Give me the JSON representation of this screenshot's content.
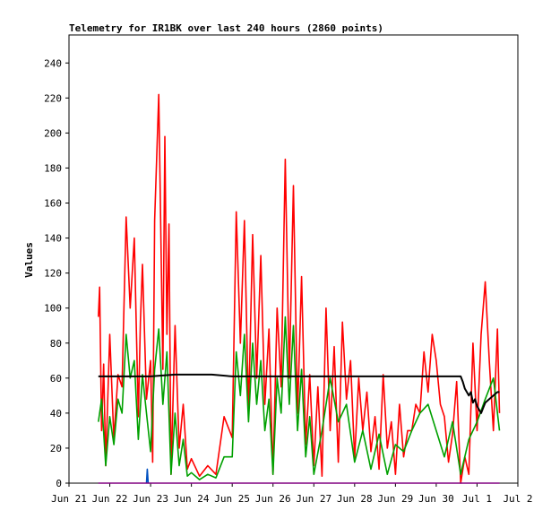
{
  "chart_data": {
    "type": "line",
    "title": "Telemetry for IR1BK over last 240 hours (2860 points)",
    "xlabel": "",
    "ylabel": "Values",
    "x_ticks": [
      "Jun 21",
      "Jun 22",
      "Jun 23",
      "Jun 24",
      "Jun 25",
      "Jun 26",
      "Jun 27",
      "Jun 28",
      "Jun 29",
      "Jun 30",
      "Jul 1",
      "Jul 2"
    ],
    "y_ticks": [
      0,
      20,
      40,
      60,
      80,
      100,
      120,
      140,
      160,
      180,
      200,
      220,
      240
    ],
    "xlim": [
      0,
      11
    ],
    "ylim": [
      0,
      256
    ],
    "grid": false,
    "legend": "none",
    "series": [
      {
        "color": "#ff0000",
        "x": [
          0.72,
          0.75,
          0.8,
          0.85,
          0.9,
          1.0,
          1.1,
          1.2,
          1.3,
          1.4,
          1.5,
          1.6,
          1.7,
          1.75,
          1.8,
          1.9,
          2.0,
          2.05,
          2.1,
          2.2,
          2.3,
          2.35,
          2.4,
          2.45,
          2.5,
          2.6,
          2.7,
          2.8,
          2.9,
          3.0,
          3.2,
          3.4,
          3.6,
          3.8,
          4.0,
          4.1,
          4.2,
          4.3,
          4.4,
          4.5,
          4.6,
          4.7,
          4.8,
          4.9,
          5.0,
          5.1,
          5.2,
          5.3,
          5.4,
          5.5,
          5.6,
          5.7,
          5.8,
          5.9,
          6.0,
          6.1,
          6.2,
          6.3,
          6.4,
          6.5,
          6.6,
          6.7,
          6.8,
          6.9,
          7.0,
          7.1,
          7.2,
          7.3,
          7.4,
          7.5,
          7.6,
          7.7,
          7.8,
          7.9,
          8.0,
          8.1,
          8.2,
          8.3,
          8.4,
          8.5,
          8.6,
          8.7,
          8.8,
          8.9,
          9.0,
          9.1,
          9.2,
          9.3,
          9.4,
          9.5,
          9.6,
          9.7,
          9.8,
          9.9,
          10.0,
          10.1,
          10.2,
          10.3,
          10.4,
          10.5,
          10.55
        ],
        "values": [
          95,
          112,
          30,
          68,
          10,
          85,
          25,
          62,
          55,
          152,
          100,
          140,
          38,
          92,
          125,
          48,
          70,
          12,
          150,
          222,
          65,
          198,
          85,
          148,
          5,
          90,
          20,
          45,
          8,
          14,
          4,
          10,
          5,
          38,
          26,
          155,
          80,
          150,
          40,
          142,
          60,
          130,
          45,
          88,
          5,
          100,
          55,
          185,
          60,
          170,
          40,
          118,
          22,
          62,
          10,
          55,
          4,
          100,
          30,
          78,
          12,
          92,
          48,
          70,
          14,
          60,
          30,
          52,
          18,
          38,
          8,
          62,
          20,
          35,
          5,
          45,
          15,
          30,
          30,
          45,
          40,
          75,
          52,
          85,
          70,
          45,
          38,
          12,
          28,
          58,
          0,
          15,
          5,
          80,
          30,
          85,
          115,
          70,
          30,
          88,
          40
        ]
      },
      {
        "color": "#00a000",
        "x": [
          0.72,
          0.8,
          0.9,
          1.0,
          1.1,
          1.2,
          1.3,
          1.4,
          1.5,
          1.6,
          1.7,
          1.8,
          1.9,
          2.0,
          2.1,
          2.2,
          2.3,
          2.4,
          2.5,
          2.6,
          2.7,
          2.8,
          2.9,
          3.0,
          3.2,
          3.4,
          3.6,
          3.8,
          4.0,
          4.1,
          4.2,
          4.3,
          4.4,
          4.5,
          4.6,
          4.7,
          4.8,
          4.9,
          5.0,
          5.1,
          5.2,
          5.3,
          5.4,
          5.5,
          5.6,
          5.7,
          5.8,
          5.9,
          6.0,
          6.2,
          6.4,
          6.6,
          6.8,
          7.0,
          7.2,
          7.4,
          7.6,
          7.8,
          8.0,
          8.2,
          8.4,
          8.6,
          8.8,
          9.0,
          9.2,
          9.4,
          9.6,
          9.8,
          10.0,
          10.2,
          10.4,
          10.55
        ],
        "values": [
          35,
          48,
          10,
          38,
          22,
          48,
          40,
          85,
          60,
          70,
          25,
          62,
          40,
          18,
          65,
          88,
          45,
          75,
          5,
          40,
          10,
          25,
          4,
          6,
          2,
          5,
          3,
          15,
          15,
          75,
          50,
          85,
          35,
          80,
          45,
          70,
          30,
          48,
          5,
          60,
          40,
          95,
          45,
          90,
          30,
          65,
          15,
          38,
          5,
          30,
          60,
          35,
          45,
          12,
          30,
          8,
          28,
          5,
          22,
          18,
          30,
          40,
          45,
          30,
          15,
          35,
          5,
          25,
          35,
          48,
          60,
          30
        ]
      },
      {
        "color": "#000000",
        "x": [
          0.72,
          1.0,
          2.0,
          2.6,
          2.65,
          3.0,
          3.5,
          4.0,
          5.0,
          6.0,
          7.0,
          8.0,
          9.0,
          9.6,
          9.65,
          9.7,
          9.8,
          9.85,
          9.9,
          9.95,
          10.0,
          10.05,
          10.1,
          10.15,
          10.2,
          10.3,
          10.4,
          10.5,
          10.55
        ],
        "values": [
          61,
          61,
          61,
          62,
          62,
          62,
          62,
          61,
          61,
          61,
          61,
          61,
          61,
          61,
          58,
          54,
          50,
          52,
          46,
          48,
          44,
          42,
          40,
          43,
          46,
          48,
          50,
          52,
          52
        ]
      },
      {
        "color": "#0050c0",
        "x": [
          1.9,
          1.92,
          1.94
        ],
        "values": [
          0,
          8,
          0
        ]
      },
      {
        "color": "#800080",
        "x": [
          0.72,
          10.55
        ],
        "values": [
          0,
          0
        ]
      }
    ]
  }
}
